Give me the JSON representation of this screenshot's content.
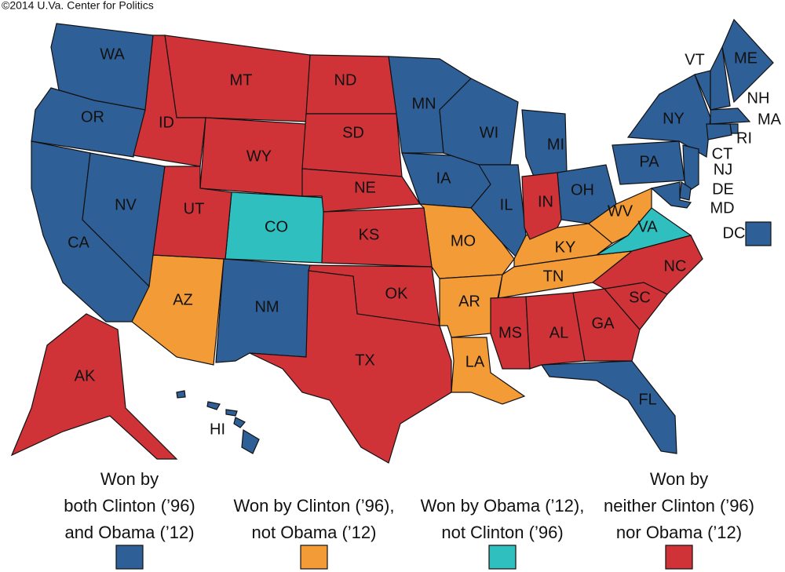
{
  "credit": "©2014 U.Va. Center for Politics",
  "legend": [
    {
      "lines": [
        "Won by",
        "both Clinton (’96)",
        "and Obama (’12)"
      ],
      "color": "#2f5f97",
      "states": [
        "WA",
        "OR",
        "CA",
        "NV",
        "NM",
        "MN",
        "IA",
        "WI",
        "IL",
        "MI",
        "OH",
        "PA",
        "NY",
        "VT",
        "NH",
        "ME",
        "MA",
        "RI",
        "CT",
        "NJ",
        "DE",
        "MD",
        "DC",
        "FL",
        "HI"
      ]
    },
    {
      "lines": [
        "Won by Clinton (’96),",
        "not Obama (’12)"
      ],
      "color": "#f39b36",
      "states": [
        "AZ",
        "MO",
        "AR",
        "LA",
        "KY",
        "TN",
        "WV"
      ]
    },
    {
      "lines": [
        "Won by Obama (’12),",
        "not Clinton (’96)"
      ],
      "color": "#2fbfbf",
      "states": [
        "CO",
        "VA"
      ]
    },
    {
      "lines": [
        "Won by",
        "neither Clinton (’96)",
        "nor Obama (’12)"
      ],
      "color": "#cf3338",
      "states": [
        "MT",
        "ID",
        "WY",
        "UT",
        "ND",
        "SD",
        "NE",
        "KS",
        "OK",
        "TX",
        "MS",
        "AL",
        "GA",
        "SC",
        "NC",
        "IN",
        "AK"
      ]
    }
  ]
}
